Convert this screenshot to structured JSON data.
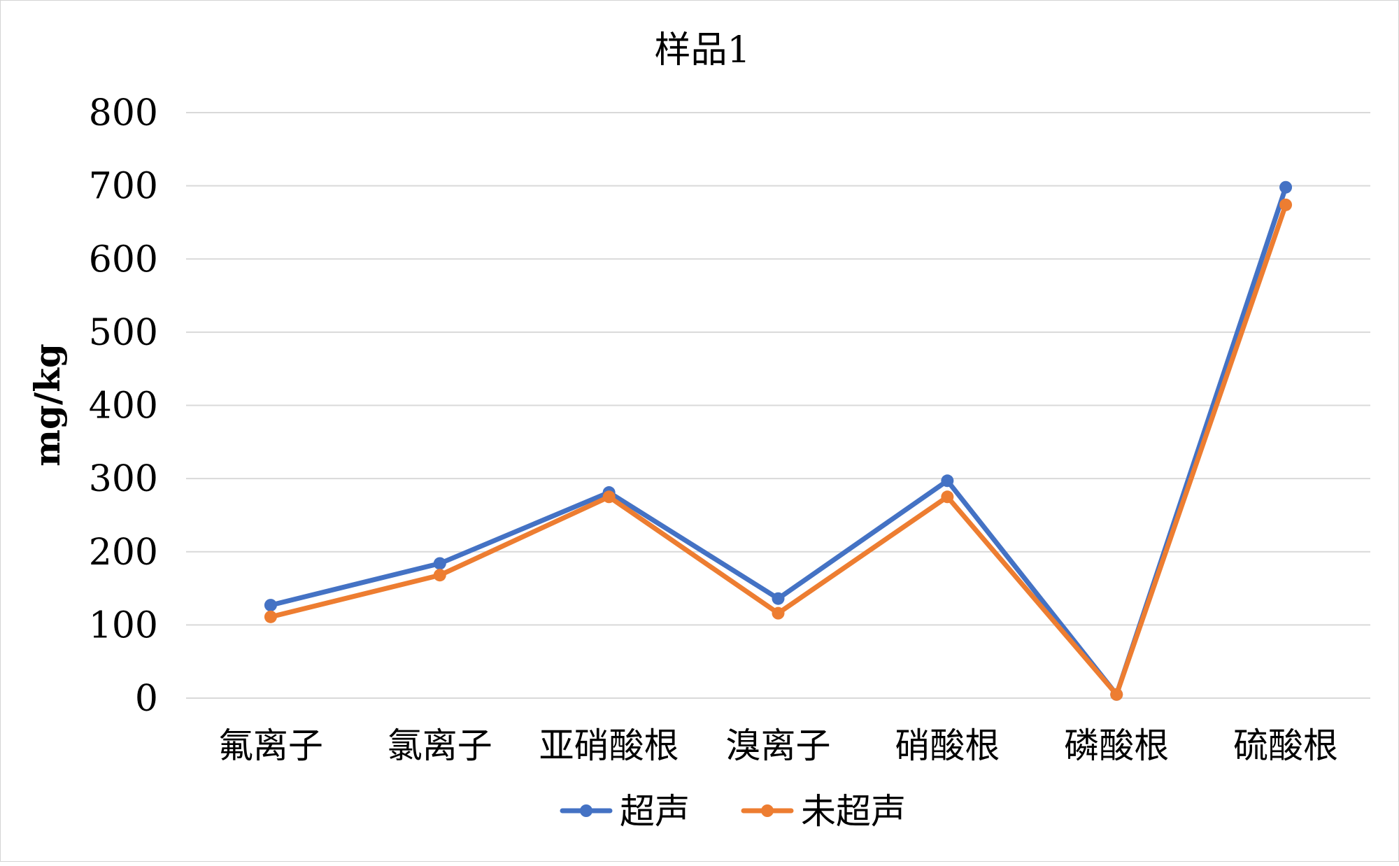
{
  "chart_data": {
    "type": "line",
    "title": "样品1",
    "xlabel": "",
    "ylabel": "mg/kg",
    "categories": [
      "氟离子",
      "氯离子",
      "亚硝酸根",
      "溴离子",
      "硝酸根",
      "磷酸根",
      "硫酸根"
    ],
    "series": [
      {
        "name": "超声",
        "color": "#4472C4",
        "values": [
          127,
          184,
          281,
          136,
          297,
          5,
          698
        ]
      },
      {
        "name": "未超声",
        "color": "#ED7D31",
        "values": [
          111,
          168,
          275,
          116,
          275,
          5,
          674
        ]
      }
    ],
    "ylim": [
      0,
      800
    ],
    "yticks": [
      "0",
      "100",
      "200",
      "300",
      "400",
      "500",
      "600",
      "700",
      "800"
    ],
    "grid": true,
    "legend_position": "bottom"
  }
}
